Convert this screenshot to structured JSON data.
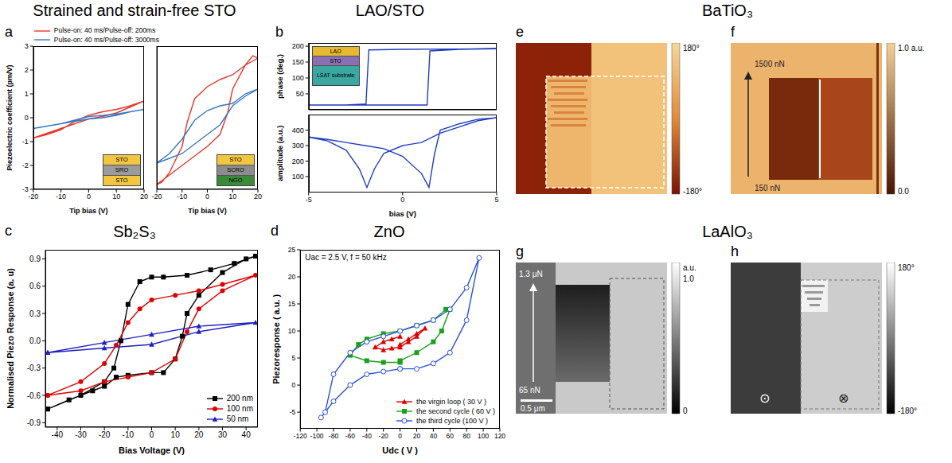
{
  "chart_data": [
    {
      "panel": "a",
      "title": "Strained and strain-free STO",
      "type": "line",
      "xlabel": "Tip bias (V)",
      "ylabel": "Piezoelectric coefficient (pm/V)",
      "xlim": [
        -20,
        20
      ],
      "ylim": [
        -3,
        3
      ],
      "xticks": [
        -20,
        -10,
        0,
        10,
        20
      ],
      "yticks": [
        -3,
        -2,
        -1,
        0,
        1,
        2,
        3
      ],
      "legend": "top",
      "series": [
        {
          "name": "Pulse-on: 40 ms/Pulse-off: 200ms",
          "color": "#e8372b",
          "marker": "none",
          "x": [
            -20,
            -15,
            -10,
            -5,
            0,
            5,
            10,
            15,
            20,
            15,
            10,
            5,
            0,
            -5,
            -10,
            -15,
            -20
          ],
          "values": [
            -0.85,
            -0.7,
            -0.5,
            -0.15,
            0.1,
            0.25,
            0.35,
            0.5,
            0.7,
            0.45,
            0.2,
            0.05,
            -0.05,
            -0.25,
            -0.45,
            -0.65,
            -0.85
          ]
        },
        {
          "name": "Pulse-on: 40 ms/Pulse-off: 3000ms",
          "color": "#3a78c4",
          "marker": "none",
          "x": [
            -20,
            -15,
            -10,
            -5,
            0,
            5,
            10,
            15,
            20,
            15,
            10,
            5,
            0,
            -5,
            -10,
            -15,
            -20
          ],
          "values": [
            -0.45,
            -0.35,
            -0.25,
            -0.1,
            0.05,
            0.1,
            0.15,
            0.25,
            0.35,
            0.25,
            0.1,
            0.0,
            -0.05,
            -0.15,
            -0.25,
            -0.35,
            -0.45
          ]
        }
      ],
      "inset": [
        {
          "label": "STO",
          "color": "#f3c640"
        },
        {
          "label": "SRO",
          "color": "#9b9b9b"
        },
        {
          "label": "STO",
          "color": "#f3c640"
        }
      ]
    },
    {
      "type": "line",
      "xlabel": "Tip bias (V)",
      "xlim": [
        -20,
        20
      ],
      "ylim": [
        -3,
        3
      ],
      "xticks": [
        -20,
        -10,
        0,
        10,
        20
      ],
      "yticks": [
        -3,
        -2,
        -1,
        0,
        1,
        2,
        3
      ],
      "tick_labels": "x",
      "series": [
        {
          "name": "Pulse-on: 40 ms/Pulse-off: 200ms",
          "color": "#e8372b",
          "marker": "none",
          "x": [
            -20,
            -15,
            -10,
            -5,
            0,
            5,
            8,
            10,
            15,
            18,
            20,
            15,
            10,
            5,
            0,
            -5,
            -8,
            -10,
            -15,
            -18,
            -20
          ],
          "values": [
            -2.8,
            -2.4,
            -2.0,
            -1.6,
            -1.2,
            -0.7,
            0.2,
            1.2,
            2.2,
            2.6,
            2.5,
            2.2,
            1.8,
            1.6,
            1.3,
            0.8,
            -0.2,
            -1.2,
            -2.3,
            -2.7,
            -2.8
          ]
        },
        {
          "name": "Pulse-on: 40 ms/Pulse-off: 3000ms",
          "color": "#3a78c4",
          "marker": "none",
          "x": [
            -20,
            -15,
            -10,
            -5,
            0,
            5,
            10,
            15,
            20,
            15,
            10,
            5,
            0,
            -5,
            -10,
            -15,
            -20
          ],
          "values": [
            -1.9,
            -1.7,
            -1.5,
            -1.1,
            -0.7,
            -0.3,
            0.5,
            0.9,
            1.2,
            1.0,
            0.6,
            0.5,
            0.3,
            -0.1,
            -0.9,
            -1.5,
            -1.9
          ]
        }
      ],
      "inset": [
        {
          "label": "STO",
          "color": "#f3c640"
        },
        {
          "label": "SCRO",
          "color": "#8c8c8c"
        },
        {
          "label": "NGO",
          "color": "#3a8a3a"
        }
      ]
    },
    {
      "panel": "b",
      "title": "LAO/STO",
      "type": "line",
      "ylabel": "phase (deg.)",
      "xlim": [
        -5,
        5
      ],
      "ylim": [
        0,
        210
      ],
      "xticks": [
        -5,
        0,
        5
      ],
      "yticks": [
        50,
        100,
        150,
        200
      ],
      "tick_labels": "y",
      "series": [
        {
          "color": "#1f3cc0",
          "marker": "none",
          "x": [
            -5,
            0,
            1.3,
            1.45,
            3,
            5,
            3,
            0,
            -1.8,
            -1.95,
            -3,
            -5
          ],
          "values": [
            15,
            15,
            15,
            185,
            190,
            192,
            191,
            190,
            188,
            18,
            15,
            15
          ]
        }
      ],
      "inset": [
        {
          "label": "LAO",
          "color": "#e8b830"
        },
        {
          "label": "STO",
          "color": "#8a6fb5"
        },
        {
          "label": "LSAT substrate",
          "color": "#3aa7a0"
        }
      ]
    },
    {
      "type": "line",
      "xlabel": "bias (V)",
      "ylabel": "amplitude (a.u.)",
      "xlim": [
        -5,
        5
      ],
      "ylim": [
        0,
        500
      ],
      "xticks": [
        -5,
        0,
        5
      ],
      "yticks": [
        100,
        200,
        300,
        400
      ],
      "series": [
        {
          "color": "#1f3cc0",
          "marker": "none",
          "x": [
            -5,
            -4,
            -3,
            -2.3,
            -1.9,
            -1.5,
            -1,
            0,
            1,
            2,
            3,
            4,
            5,
            4,
            3,
            2,
            1.7,
            1.4,
            1,
            0,
            -1,
            -2,
            -3,
            -4,
            -5
          ],
          "values": [
            355,
            330,
            270,
            150,
            30,
            150,
            250,
            300,
            320,
            380,
            420,
            460,
            480,
            470,
            440,
            400,
            250,
            30,
            120,
            230,
            280,
            300,
            320,
            340,
            355
          ]
        }
      ]
    },
    {
      "panel": "c",
      "title": "Sb₂S₃",
      "type": "line",
      "xlabel": "Bias Voltage (V)",
      "ylabel": "Normalised Piezo Response (a. u)",
      "xlim": [
        -45,
        45
      ],
      "ylim": [
        -0.95,
        1.0
      ],
      "xticks": [
        -40,
        -30,
        -20,
        -10,
        0,
        10,
        20,
        30,
        40
      ],
      "yticks": [
        -0.9,
        -0.6,
        -0.3,
        {
          "value": 0,
          "label": "0.0"
        },
        0.3,
        0.6,
        0.9
      ],
      "legend": "lower right",
      "series": [
        {
          "name": "200 nm",
          "color": "#000000",
          "marker": "square",
          "x": [
            -44,
            -35,
            -25,
            -20,
            -15,
            -10,
            0,
            5,
            10,
            13,
            15,
            20,
            30,
            40,
            44,
            35,
            25,
            15,
            5,
            0,
            -5,
            -10,
            -13,
            -16,
            -20,
            -30,
            -44
          ],
          "values": [
            -0.75,
            -0.65,
            -0.55,
            -0.5,
            -0.4,
            -0.38,
            -0.35,
            -0.35,
            -0.2,
            0.05,
            0.3,
            0.5,
            0.75,
            0.9,
            0.93,
            0.85,
            0.78,
            0.72,
            0.7,
            0.7,
            0.65,
            0.4,
            0.0,
            -0.3,
            -0.45,
            -0.6,
            -0.75
          ]
        },
        {
          "name": "100 nm",
          "color": "#e00000",
          "marker": "circle",
          "x": [
            -44,
            -30,
            -20,
            -10,
            0,
            10,
            15,
            20,
            30,
            44,
            30,
            20,
            10,
            0,
            -5,
            -10,
            -15,
            -20,
            -30,
            -44
          ],
          "values": [
            -0.6,
            -0.55,
            -0.45,
            -0.4,
            -0.35,
            -0.2,
            0.1,
            0.35,
            0.55,
            0.72,
            0.62,
            0.55,
            0.5,
            0.45,
            0.35,
            0.2,
            -0.05,
            -0.25,
            -0.45,
            -0.6
          ]
        },
        {
          "name": "50 nm",
          "color": "#2020c0",
          "marker": "triangle",
          "x": [
            -44,
            -20,
            0,
            20,
            44,
            20,
            0,
            -20,
            -44
          ],
          "values": [
            -0.13,
            -0.08,
            -0.04,
            0.1,
            0.2,
            0.16,
            0.07,
            -0.02,
            -0.13
          ]
        }
      ]
    },
    {
      "panel": "d",
      "title": "ZnO",
      "type": "line",
      "xlabel": "Udc ( V )",
      "ylabel": "Piezoresponse ( a.u. )",
      "xlim": [
        -120,
        120
      ],
      "ylim": [
        -8,
        25
      ],
      "xticks": [
        -120,
        -100,
        -80,
        -60,
        -40,
        -20,
        0,
        20,
        40,
        60,
        80,
        100,
        120
      ],
      "yticks": [
        -5,
        0,
        5,
        10,
        15,
        20,
        25
      ],
      "legend": "lower right",
      "annotations": [
        "Uac = 2.5 V, f = 50 kHz"
      ],
      "series": [
        {
          "name": "the virgin loop ( 30 V )",
          "color": "#e00000",
          "marker": "triangle",
          "x": [
            0,
            10,
            20,
            30,
            20,
            10,
            0,
            -10,
            -20,
            -30,
            -20,
            -10,
            0
          ],
          "values": [
            7.5,
            8.5,
            9.5,
            10.5,
            9,
            8,
            7,
            6.8,
            6.5,
            7,
            8,
            8.5,
            9
          ]
        },
        {
          "name": "the second cycle ( 60 V )",
          "color": "#1aa01a",
          "marker": "square",
          "x": [
            0,
            -20,
            -40,
            -60,
            -50,
            -40,
            -20,
            0,
            20,
            40,
            55,
            60,
            50,
            40,
            20,
            0
          ],
          "values": [
            4.2,
            4.2,
            4.5,
            5.5,
            7.5,
            8.5,
            9.5,
            10,
            11,
            12,
            14,
            14,
            10,
            8,
            6,
            4.5
          ]
        },
        {
          "name": "the third cycle (100 V )",
          "color": "#2a4fe0",
          "marker": "open_circle",
          "x": [
            0,
            -20,
            -40,
            -60,
            -80,
            -95,
            -90,
            -80,
            -60,
            -40,
            -20,
            0,
            20,
            40,
            60,
            80,
            95,
            80,
            60,
            40,
            20,
            0
          ],
          "values": [
            3,
            2.5,
            2,
            0,
            -3,
            -6,
            -5,
            2,
            6,
            8,
            9,
            10,
            11,
            12,
            14,
            18,
            23.5,
            12,
            6,
            4,
            3,
            3
          ]
        }
      ]
    }
  ],
  "image_groups": [
    {
      "title": "BaTiO₃",
      "panels": [
        {
          "panel": "e",
          "colorbar": [
            "180°",
            "-180°"
          ]
        },
        {
          "panel": "f",
          "colorbar": [
            "1.0 a.u.",
            "0.0"
          ],
          "arrow_labels": [
            "1500 nN",
            "150 nN"
          ]
        }
      ]
    },
    {
      "title": "LaAlO₃",
      "panels": [
        {
          "panel": "g",
          "colorbar": [
            "a.u.",
            "1.0",
            "0"
          ],
          "arrow_labels": [
            "1.3 μN",
            "65 nN"
          ],
          "scale_bar": "0.5 μm"
        },
        {
          "panel": "h",
          "colorbar": [
            "180°",
            "-180°"
          ],
          "symbols": [
            "⊙",
            "⊗"
          ]
        }
      ]
    }
  ]
}
